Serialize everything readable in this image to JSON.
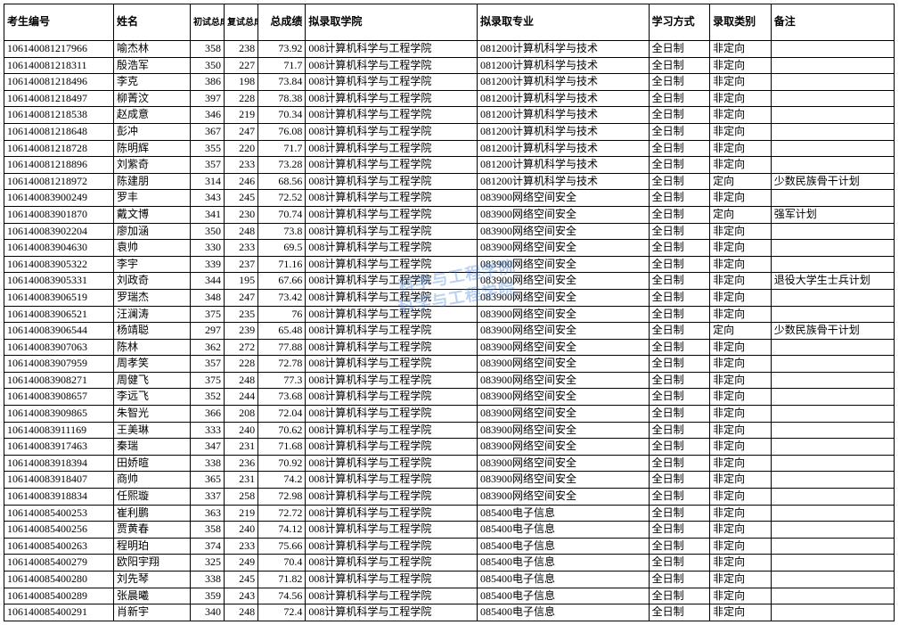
{
  "headers": {
    "id": "考生编号",
    "name": "姓名",
    "s1": "初试总成绩",
    "s2": "复试总成绩",
    "s3": "总成绩",
    "school": "拟录取学院",
    "major": "拟录取专业",
    "mode": "学习方式",
    "type": "录取类别",
    "note": "备注"
  },
  "watermark": "科学与工程学院",
  "rows": [
    {
      "id": "106140081217966",
      "name": "喻杰林",
      "s1": "358",
      "s2": "238",
      "s3": "73.92",
      "school": "008计算机科学与工程学院",
      "major": "081200计算机科学与技术",
      "mode": "全日制",
      "type": "非定向",
      "note": ""
    },
    {
      "id": "106140081218311",
      "name": "殷浩军",
      "s1": "350",
      "s2": "227",
      "s3": "71.7",
      "school": "008计算机科学与工程学院",
      "major": "081200计算机科学与技术",
      "mode": "全日制",
      "type": "非定向",
      "note": ""
    },
    {
      "id": "106140081218496",
      "name": "李克",
      "s1": "386",
      "s2": "198",
      "s3": "73.84",
      "school": "008计算机科学与工程学院",
      "major": "081200计算机科学与技术",
      "mode": "全日制",
      "type": "非定向",
      "note": ""
    },
    {
      "id": "106140081218497",
      "name": "柳菁汶",
      "s1": "397",
      "s2": "228",
      "s3": "78.38",
      "school": "008计算机科学与工程学院",
      "major": "081200计算机科学与技术",
      "mode": "全日制",
      "type": "非定向",
      "note": ""
    },
    {
      "id": "106140081218538",
      "name": "赵成意",
      "s1": "346",
      "s2": "219",
      "s3": "70.34",
      "school": "008计算机科学与工程学院",
      "major": "081200计算机科学与技术",
      "mode": "全日制",
      "type": "非定向",
      "note": ""
    },
    {
      "id": "106140081218648",
      "name": "彭冲",
      "s1": "367",
      "s2": "247",
      "s3": "76.08",
      "school": "008计算机科学与工程学院",
      "major": "081200计算机科学与技术",
      "mode": "全日制",
      "type": "非定向",
      "note": ""
    },
    {
      "id": "106140081218728",
      "name": "陈明辉",
      "s1": "355",
      "s2": "220",
      "s3": "71.7",
      "school": "008计算机科学与工程学院",
      "major": "081200计算机科学与技术",
      "mode": "全日制",
      "type": "非定向",
      "note": ""
    },
    {
      "id": "106140081218896",
      "name": "刘紫奇",
      "s1": "357",
      "s2": "233",
      "s3": "73.28",
      "school": "008计算机科学与工程学院",
      "major": "081200计算机科学与技术",
      "mode": "全日制",
      "type": "非定向",
      "note": ""
    },
    {
      "id": "106140081218972",
      "name": "陈建朋",
      "s1": "314",
      "s2": "246",
      "s3": "68.56",
      "school": "008计算机科学与工程学院",
      "major": "081200计算机科学与技术",
      "mode": "全日制",
      "type": "定向",
      "note": "少数民族骨干计划"
    },
    {
      "id": "106140083900249",
      "name": "罗丰",
      "s1": "343",
      "s2": "245",
      "s3": "72.52",
      "school": "008计算机科学与工程学院",
      "major": "083900网络空间安全",
      "mode": "全日制",
      "type": "非定向",
      "note": ""
    },
    {
      "id": "106140083901870",
      "name": "戴文博",
      "s1": "341",
      "s2": "230",
      "s3": "70.74",
      "school": "008计算机科学与工程学院",
      "major": "083900网络空间安全",
      "mode": "全日制",
      "type": "定向",
      "note": "强军计划"
    },
    {
      "id": "106140083902204",
      "name": "廖加涵",
      "s1": "350",
      "s2": "248",
      "s3": "73.8",
      "school": "008计算机科学与工程学院",
      "major": "083900网络空间安全",
      "mode": "全日制",
      "type": "非定向",
      "note": ""
    },
    {
      "id": "106140083904630",
      "name": "袁帅",
      "s1": "330",
      "s2": "233",
      "s3": "69.5",
      "school": "008计算机科学与工程学院",
      "major": "083900网络空间安全",
      "mode": "全日制",
      "type": "非定向",
      "note": ""
    },
    {
      "id": "106140083905322",
      "name": "李宇",
      "s1": "339",
      "s2": "237",
      "s3": "71.16",
      "school": "008计算机科学与工程学院",
      "major": "083900网络空间安全",
      "mode": "全日制",
      "type": "非定向",
      "note": ""
    },
    {
      "id": "106140083905331",
      "name": "刘政奇",
      "s1": "344",
      "s2": "195",
      "s3": "67.66",
      "school": "008计算机科学与工程学院",
      "major": "083900网络空间安全",
      "mode": "全日制",
      "type": "非定向",
      "note": "退役大学生士兵计划"
    },
    {
      "id": "106140083906519",
      "name": "罗瑞杰",
      "s1": "348",
      "s2": "247",
      "s3": "73.42",
      "school": "008计算机科学与工程学院",
      "major": "083900网络空间安全",
      "mode": "全日制",
      "type": "非定向",
      "note": ""
    },
    {
      "id": "106140083906521",
      "name": "汪澜涛",
      "s1": "375",
      "s2": "235",
      "s3": "76",
      "school": "008计算机科学与工程学院",
      "major": "083900网络空间安全",
      "mode": "全日制",
      "type": "非定向",
      "note": ""
    },
    {
      "id": "106140083906544",
      "name": "杨靖聪",
      "s1": "297",
      "s2": "239",
      "s3": "65.48",
      "school": "008计算机科学与工程学院",
      "major": "083900网络空间安全",
      "mode": "全日制",
      "type": "定向",
      "note": "少数民族骨干计划"
    },
    {
      "id": "106140083907063",
      "name": "陈林",
      "s1": "362",
      "s2": "272",
      "s3": "77.88",
      "school": "008计算机科学与工程学院",
      "major": "083900网络空间安全",
      "mode": "全日制",
      "type": "非定向",
      "note": ""
    },
    {
      "id": "106140083907959",
      "name": "周孝笑",
      "s1": "357",
      "s2": "228",
      "s3": "72.78",
      "school": "008计算机科学与工程学院",
      "major": "083900网络空间安全",
      "mode": "全日制",
      "type": "非定向",
      "note": ""
    },
    {
      "id": "106140083908271",
      "name": "周健飞",
      "s1": "375",
      "s2": "248",
      "s3": "77.3",
      "school": "008计算机科学与工程学院",
      "major": "083900网络空间安全",
      "mode": "全日制",
      "type": "非定向",
      "note": ""
    },
    {
      "id": "106140083908657",
      "name": "李远飞",
      "s1": "352",
      "s2": "244",
      "s3": "73.68",
      "school": "008计算机科学与工程学院",
      "major": "083900网络空间安全",
      "mode": "全日制",
      "type": "非定向",
      "note": ""
    },
    {
      "id": "106140083909865",
      "name": "朱智光",
      "s1": "366",
      "s2": "208",
      "s3": "72.04",
      "school": "008计算机科学与工程学院",
      "major": "083900网络空间安全",
      "mode": "全日制",
      "type": "非定向",
      "note": ""
    },
    {
      "id": "106140083911169",
      "name": "王美琳",
      "s1": "333",
      "s2": "240",
      "s3": "70.62",
      "school": "008计算机科学与工程学院",
      "major": "083900网络空间安全",
      "mode": "全日制",
      "type": "非定向",
      "note": ""
    },
    {
      "id": "106140083917463",
      "name": "秦瑞",
      "s1": "347",
      "s2": "231",
      "s3": "71.68",
      "school": "008计算机科学与工程学院",
      "major": "083900网络空间安全",
      "mode": "全日制",
      "type": "非定向",
      "note": ""
    },
    {
      "id": "106140083918394",
      "name": "田娇暄",
      "s1": "338",
      "s2": "236",
      "s3": "70.92",
      "school": "008计算机科学与工程学院",
      "major": "083900网络空间安全",
      "mode": "全日制",
      "type": "非定向",
      "note": ""
    },
    {
      "id": "106140083918407",
      "name": "商帅",
      "s1": "365",
      "s2": "231",
      "s3": "74.2",
      "school": "008计算机科学与工程学院",
      "major": "083900网络空间安全",
      "mode": "全日制",
      "type": "非定向",
      "note": ""
    },
    {
      "id": "106140083918834",
      "name": "任熙璇",
      "s1": "337",
      "s2": "258",
      "s3": "72.98",
      "school": "008计算机科学与工程学院",
      "major": "083900网络空间安全",
      "mode": "全日制",
      "type": "非定向",
      "note": ""
    },
    {
      "id": "106140085400253",
      "name": "崔利鹏",
      "s1": "363",
      "s2": "219",
      "s3": "72.72",
      "school": "008计算机科学与工程学院",
      "major": "085400电子信息",
      "mode": "全日制",
      "type": "非定向",
      "note": ""
    },
    {
      "id": "106140085400256",
      "name": "贾黄春",
      "s1": "358",
      "s2": "240",
      "s3": "74.12",
      "school": "008计算机科学与工程学院",
      "major": "085400电子信息",
      "mode": "全日制",
      "type": "非定向",
      "note": ""
    },
    {
      "id": "106140085400263",
      "name": "程明珀",
      "s1": "374",
      "s2": "233",
      "s3": "75.66",
      "school": "008计算机科学与工程学院",
      "major": "085400电子信息",
      "mode": "全日制",
      "type": "非定向",
      "note": ""
    },
    {
      "id": "106140085400279",
      "name": "欧阳宇翔",
      "s1": "325",
      "s2": "249",
      "s3": "70.4",
      "school": "008计算机科学与工程学院",
      "major": "085400电子信息",
      "mode": "全日制",
      "type": "非定向",
      "note": ""
    },
    {
      "id": "106140085400280",
      "name": "刘先琴",
      "s1": "338",
      "s2": "245",
      "s3": "71.82",
      "school": "008计算机科学与工程学院",
      "major": "085400电子信息",
      "mode": "全日制",
      "type": "非定向",
      "note": ""
    },
    {
      "id": "106140085400289",
      "name": "张晨曦",
      "s1": "359",
      "s2": "243",
      "s3": "74.56",
      "school": "008计算机科学与工程学院",
      "major": "085400电子信息",
      "mode": "全日制",
      "type": "非定向",
      "note": ""
    },
    {
      "id": "106140085400291",
      "name": "肖新宇",
      "s1": "340",
      "s2": "248",
      "s3": "72.4",
      "school": "008计算机科学与工程学院",
      "major": "085400电子信息",
      "mode": "全日制",
      "type": "非定向",
      "note": ""
    }
  ]
}
